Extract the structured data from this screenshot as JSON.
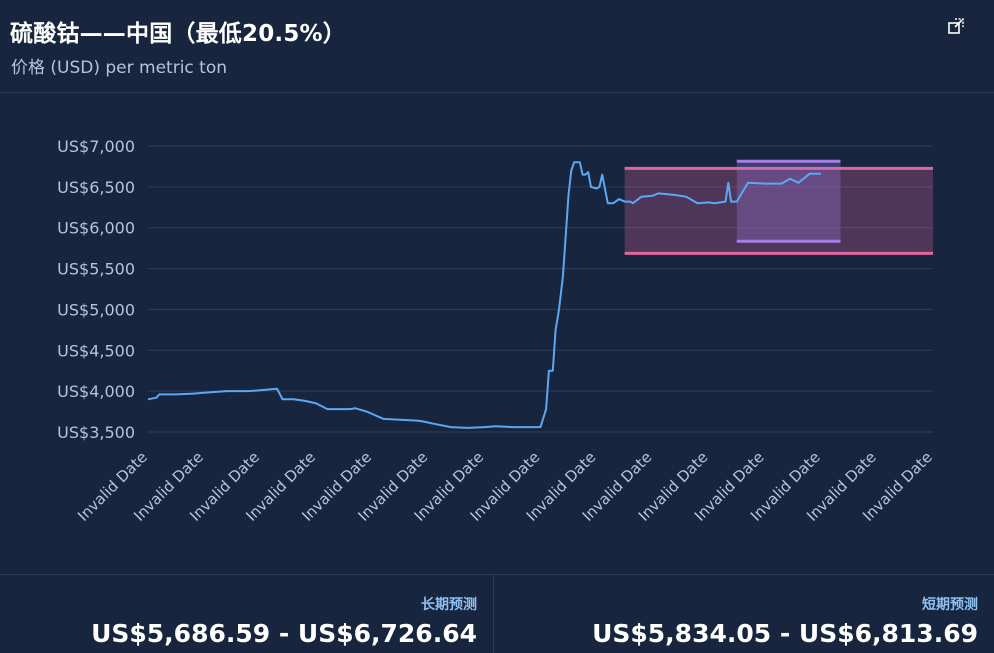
{
  "header": {
    "title": "硫酸钴——中国（最低20.5%）",
    "subtitle": "价格 (USD) per metric ton",
    "expand_icon": "expand-icon"
  },
  "chart_data": {
    "type": "line",
    "title": "硫酸钴——中国（最低20.5%）",
    "ylabel": "价格 (USD) per metric ton",
    "ylim": [
      3500,
      7000
    ],
    "y_ticks": [
      3500,
      4000,
      4500,
      5000,
      5500,
      6000,
      6500,
      7000
    ],
    "y_tick_labels": [
      "US$3,500",
      "US$4,000",
      "US$4,500",
      "US$5,000",
      "US$5,500",
      "US$6,000",
      "US$6,500",
      "US$7,000"
    ],
    "x_tick_labels": [
      "Invalid Date",
      "Invalid Date",
      "Invalid Date",
      "Invalid Date",
      "Invalid Date",
      "Invalid Date",
      "Invalid Date",
      "Invalid Date",
      "Invalid Date",
      "Invalid Date",
      "Invalid Date",
      "Invalid Date",
      "Invalid Date",
      "Invalid Date",
      "Invalid Date"
    ],
    "xlim": [
      0,
      14
    ],
    "grid": true,
    "series": [
      {
        "color": "#5ba8f5",
        "x": [
          0,
          0.15,
          0.2,
          0.5,
          0.8,
          1.0,
          1.4,
          1.6,
          1.8,
          2.0,
          2.3,
          2.4,
          2.6,
          2.8,
          3.0,
          3.2,
          3.4,
          3.6,
          3.7,
          3.9,
          4.0,
          4.2,
          4.5,
          4.8,
          4.9,
          5.1,
          5.4,
          5.7,
          6.0,
          6.2,
          6.5,
          6.8,
          7.0,
          7.1,
          7.15,
          7.22,
          7.27,
          7.33,
          7.4,
          7.45,
          7.5,
          7.55,
          7.6,
          7.7,
          7.75,
          7.8,
          7.85,
          7.9,
          8.0,
          8.05,
          8.1,
          8.2,
          8.3,
          8.4,
          8.5,
          8.6,
          8.65,
          8.8,
          9.0,
          9.1,
          9.4,
          9.6,
          9.8,
          10.0,
          10.1,
          10.3,
          10.35,
          10.4,
          10.5,
          10.7,
          11.0,
          11.3,
          11.45,
          11.6,
          11.8,
          12.0
        ],
        "values": [
          3900,
          3920,
          3960,
          3960,
          3970,
          3980,
          4000,
          4000,
          4000,
          4010,
          4030,
          3900,
          3900,
          3880,
          3850,
          3780,
          3780,
          3780,
          3790,
          3750,
          3720,
          3660,
          3650,
          3640,
          3630,
          3600,
          3560,
          3550,
          3560,
          3570,
          3560,
          3560,
          3560,
          3780,
          4250,
          4250,
          4750,
          5000,
          5400,
          5900,
          6400,
          6700,
          6800,
          6800,
          6650,
          6650,
          6680,
          6500,
          6480,
          6500,
          6650,
          6300,
          6300,
          6350,
          6320,
          6320,
          6300,
          6380,
          6390,
          6420,
          6400,
          6380,
          6300,
          6310,
          6300,
          6320,
          6550,
          6320,
          6320,
          6550,
          6540,
          6540,
          6600,
          6550,
          6660,
          6660
        ]
      }
    ],
    "ranges": [
      {
        "name": "长期预测",
        "low": 5686.59,
        "high": 6726.64,
        "x_start": 8.5,
        "x_end": 14,
        "color": "#e0649e"
      },
      {
        "name": "短期预测",
        "low": 5834.05,
        "high": 6813.69,
        "x_start": 10.5,
        "x_end": 12.35,
        "color": "#a77ee8"
      }
    ]
  },
  "footer": {
    "long_term": {
      "label": "长期预测",
      "value": "US$5,686.59 - US$6,726.64"
    },
    "short_term": {
      "label": "短期预测",
      "value": "US$5,834.05 - US$6,813.69"
    }
  }
}
